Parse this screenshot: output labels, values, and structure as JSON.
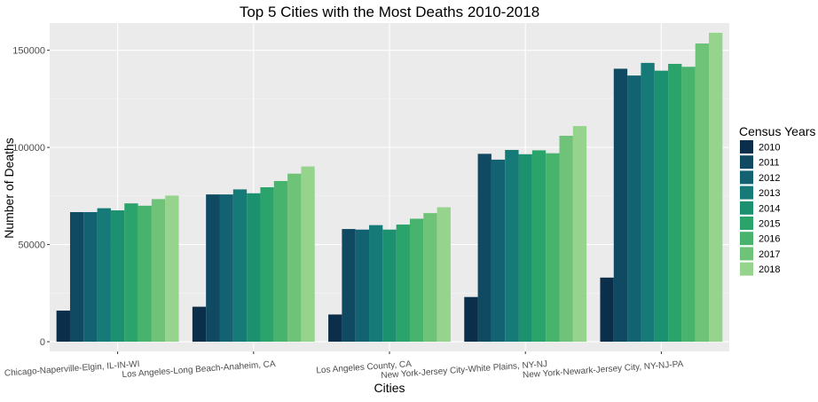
{
  "chart_data": {
    "type": "bar",
    "title": "Top 5 Cities with the Most Deaths 2010-2018",
    "xlabel": "Cities",
    "ylabel": "Number of Deaths",
    "ylim": [
      -5000,
      164000
    ],
    "yticks": [
      0,
      50000,
      100000,
      150000
    ],
    "ytick_labels": [
      "0",
      "50000",
      "100000",
      "150000"
    ],
    "grid": true,
    "legend": {
      "title": "Census Years",
      "placement": "right"
    },
    "categories": [
      "Chicago-Naperville-Elgin, IL-IN-WI",
      "Los Angeles-Long Beach-Anaheim, CA",
      "Los Angeles County, CA",
      "New York-Jersey City-White Plains, NY-NJ",
      "New York-Newark-Jersey City, NY-NJ-PA"
    ],
    "series": [
      {
        "name": "2010",
        "color": "#0b2e4a",
        "values": [
          16000,
          18000,
          14000,
          23000,
          33000
        ]
      },
      {
        "name": "2011",
        "color": "#0f4a62",
        "values": [
          66700,
          75800,
          58000,
          96700,
          140500
        ]
      },
      {
        "name": "2012",
        "color": "#136272",
        "values": [
          66700,
          75800,
          57700,
          93700,
          137000
        ]
      },
      {
        "name": "2013",
        "color": "#167a78",
        "values": [
          68700,
          78400,
          60000,
          98700,
          143500
        ]
      },
      {
        "name": "2014",
        "color": "#1b9170",
        "values": [
          67600,
          76400,
          57700,
          96500,
          139500
        ]
      },
      {
        "name": "2015",
        "color": "#2ba46c",
        "values": [
          71200,
          79500,
          60300,
          98500,
          143000
        ]
      },
      {
        "name": "2016",
        "color": "#48b36c",
        "values": [
          70000,
          82700,
          63300,
          97000,
          141500
        ]
      },
      {
        "name": "2017",
        "color": "#6ec378",
        "values": [
          73400,
          86500,
          66200,
          106000,
          153500
        ]
      },
      {
        "name": "2018",
        "color": "#96d48d",
        "values": [
          75200,
          90200,
          69200,
          111000,
          159000
        ]
      }
    ]
  }
}
